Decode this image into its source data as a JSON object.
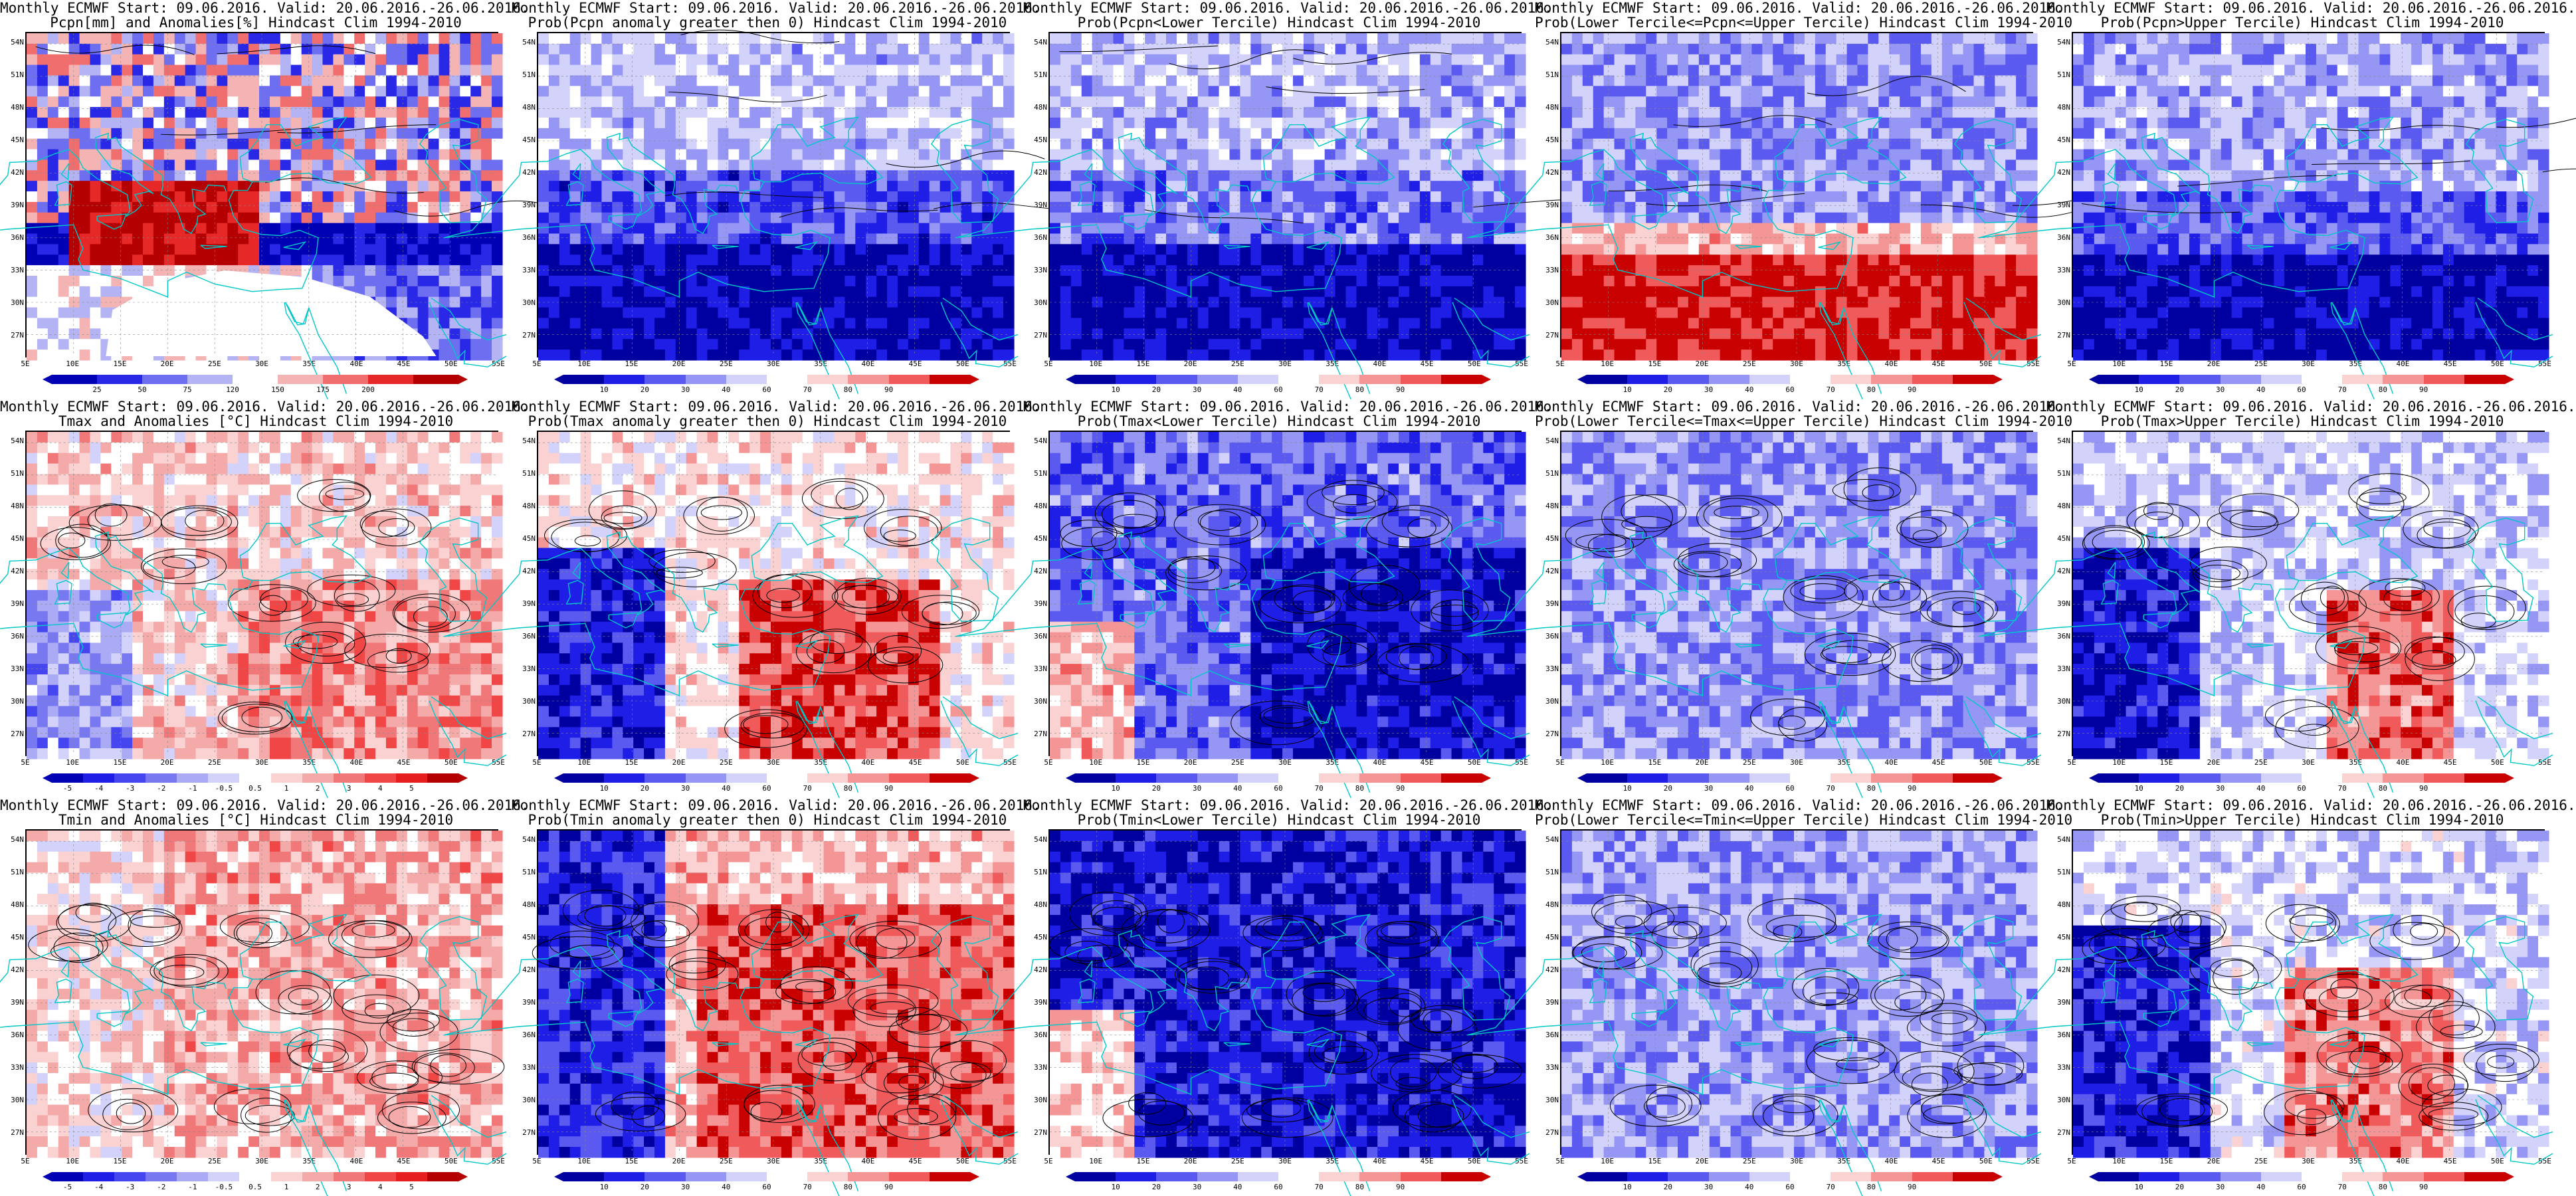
{
  "panels": [
    {
      "title1": "Monthly ECMWF Start: 09.06.2016. Valid: 20.06.2016.-26.06.2016.",
      "title2": "Pcpn[mm] and Anomalies[%] Hindcast Clim 1994-2010",
      "field": "Pcpn anomaly percent",
      "pattern": "pcpn_anom",
      "colorbar_labels": [
        "25",
        "50",
        "75",
        "120",
        "150",
        "175",
        "200"
      ],
      "colorbar_colors": [
        "#0000b4",
        "#2828e6",
        "#6e6ef0",
        "#b4b4f5",
        "#ffffff",
        "#f5b4b4",
        "#f06e6e",
        "#e62828",
        "#b40000"
      ]
    },
    {
      "title1": "Monthly ECMWF Start: 09.06.2016. Valid: 20.06.2016.-26.06.2016.",
      "title2": "Prob(Pcpn anomaly greater then 0) Hindcast Clim 1994-2010",
      "field": "probability",
      "pattern": "pcpn_pos",
      "colorbar_labels": [
        "10",
        "20",
        "30",
        "40",
        "60",
        "70",
        "80",
        "90"
      ],
      "colorbar_colors": [
        "#0000a0",
        "#1e1ee6",
        "#5a5af0",
        "#9696f5",
        "#d2d2fa",
        "#ffffff",
        "#fad2d2",
        "#f59696",
        "#f05a5a",
        "#c80000"
      ]
    },
    {
      "title1": "Monthly ECMWF Start: 09.06.2016. Valid: 20.06.2016.-26.06.2016.",
      "title2": "Prob(Pcpn<Lower Tercile) Hindcast Clim 1994-2010",
      "field": "probability",
      "pattern": "pcpn_low",
      "colorbar_labels": [
        "10",
        "20",
        "30",
        "40",
        "60",
        "70",
        "80",
        "90"
      ],
      "colorbar_colors": [
        "#0000a0",
        "#1e1ee6",
        "#5a5af0",
        "#9696f5",
        "#d2d2fa",
        "#ffffff",
        "#fad2d2",
        "#f59696",
        "#f05a5a",
        "#c80000"
      ]
    },
    {
      "title1": "Monthly ECMWF Start: 09.06.2016. Valid: 20.06.2016.-26.06.2016.",
      "title2": "Prob(Lower Tercile<=Pcpn<=Upper Tercile) Hindcast Clim 1994-2010",
      "field": "probability",
      "pattern": "pcpn_mid",
      "colorbar_labels": [
        "10",
        "20",
        "30",
        "40",
        "60",
        "70",
        "80",
        "90"
      ],
      "colorbar_colors": [
        "#0000a0",
        "#1e1ee6",
        "#5a5af0",
        "#9696f5",
        "#d2d2fa",
        "#ffffff",
        "#fad2d2",
        "#f59696",
        "#f05a5a",
        "#c80000"
      ]
    },
    {
      "title1": "Monthly ECMWF Start: 09.06.2016. Valid: 20.06.2016.-26.06.2016.",
      "title2": "Prob(Pcpn>Upper Tercile) Hindcast Clim 1994-2010",
      "field": "probability",
      "pattern": "pcpn_up",
      "colorbar_labels": [
        "10",
        "20",
        "30",
        "40",
        "60",
        "70",
        "80",
        "90"
      ],
      "colorbar_colors": [
        "#0000a0",
        "#1e1ee6",
        "#5a5af0",
        "#9696f5",
        "#d2d2fa",
        "#ffffff",
        "#fad2d2",
        "#f59696",
        "#f05a5a",
        "#c80000"
      ]
    },
    {
      "title1": "Monthly ECMWF Start: 09.06.2016. Valid: 20.06.2016.-26.06.2016.",
      "title2": "Tmax and Anomalies [°C] Hindcast Clim 1994-2010",
      "field": "temperature anomaly",
      "pattern": "tmax_anom",
      "colorbar_labels": [
        "-5",
        "-4",
        "-3",
        "-2",
        "-1",
        "-0.5",
        "0.5",
        "1",
        "2",
        "3",
        "4",
        "5"
      ],
      "colorbar_colors": [
        "#0000b4",
        "#1e1ee6",
        "#4646f0",
        "#7878f0",
        "#aaaaf5",
        "#d2d2fa",
        "#ffffff",
        "#fad2d2",
        "#f5aaaa",
        "#f07878",
        "#f04646",
        "#e61e1e",
        "#b40000"
      ]
    },
    {
      "title1": "Monthly ECMWF Start: 09.06.2016. Valid: 20.06.2016.-26.06.2016.",
      "title2": "Prob(Tmax anomaly greater then 0) Hindcast Clim 1994-2010",
      "field": "probability",
      "pattern": "tmax_pos",
      "colorbar_labels": [
        "10",
        "20",
        "30",
        "40",
        "60",
        "70",
        "80",
        "90"
      ],
      "colorbar_colors": [
        "#0000a0",
        "#1e1ee6",
        "#5a5af0",
        "#9696f5",
        "#d2d2fa",
        "#ffffff",
        "#fad2d2",
        "#f59696",
        "#f05a5a",
        "#c80000"
      ]
    },
    {
      "title1": "Monthly ECMWF Start: 09.06.2016. Valid: 20.06.2016.-26.06.2016.",
      "title2": "Prob(Tmax<Lower Tercile) Hindcast Clim 1994-2010",
      "field": "probability",
      "pattern": "tmax_low",
      "colorbar_labels": [
        "10",
        "20",
        "30",
        "40",
        "60",
        "70",
        "80",
        "90"
      ],
      "colorbar_colors": [
        "#0000a0",
        "#1e1ee6",
        "#5a5af0",
        "#9696f5",
        "#d2d2fa",
        "#ffffff",
        "#fad2d2",
        "#f59696",
        "#f05a5a",
        "#c80000"
      ]
    },
    {
      "title1": "Monthly ECMWF Start: 09.06.2016. Valid: 20.06.2016.-26.06.2016.",
      "title2": "Prob(Lower Tercile<=Tmax<=Upper Tercile) Hindcast Clim 1994-2010",
      "field": "probability",
      "pattern": "tmax_mid",
      "colorbar_labels": [
        "10",
        "20",
        "30",
        "40",
        "60",
        "70",
        "80",
        "90"
      ],
      "colorbar_colors": [
        "#0000a0",
        "#1e1ee6",
        "#5a5af0",
        "#9696f5",
        "#d2d2fa",
        "#ffffff",
        "#fad2d2",
        "#f59696",
        "#f05a5a",
        "#c80000"
      ]
    },
    {
      "title1": "Monthly ECMWF Start: 09.06.2016. Valid: 20.06.2016.-26.06.2016.",
      "title2": "Prob(Tmax>Upper Tercile) Hindcast Clim 1994-2010",
      "field": "probability",
      "pattern": "tmax_up",
      "colorbar_labels": [
        "10",
        "20",
        "30",
        "40",
        "60",
        "70",
        "80",
        "90"
      ],
      "colorbar_colors": [
        "#0000a0",
        "#1e1ee6",
        "#5a5af0",
        "#9696f5",
        "#d2d2fa",
        "#ffffff",
        "#fad2d2",
        "#f59696",
        "#f05a5a",
        "#c80000"
      ]
    },
    {
      "title1": "Monthly ECMWF Start: 09.06.2016. Valid: 20.06.2016.-26.06.2016.",
      "title2": "Tmin and Anomalies [°C] Hindcast Clim 1994-2010",
      "field": "temperature anomaly",
      "pattern": "tmin_anom",
      "colorbar_labels": [
        "-5",
        "-4",
        "-3",
        "-2",
        "-1",
        "-0.5",
        "0.5",
        "1",
        "2",
        "3",
        "4",
        "5"
      ],
      "colorbar_colors": [
        "#0000b4",
        "#1e1ee6",
        "#4646f0",
        "#7878f0",
        "#aaaaf5",
        "#d2d2fa",
        "#ffffff",
        "#fad2d2",
        "#f5aaaa",
        "#f07878",
        "#f04646",
        "#e61e1e",
        "#b40000"
      ]
    },
    {
      "title1": "Monthly ECMWF Start: 09.06.2016. Valid: 20.06.2016.-26.06.2016.",
      "title2": "Prob(Tmin anomaly greater then 0) Hindcast Clim 1994-2010",
      "field": "probability",
      "pattern": "tmin_pos",
      "colorbar_labels": [
        "10",
        "20",
        "30",
        "40",
        "60",
        "70",
        "80",
        "90"
      ],
      "colorbar_colors": [
        "#0000a0",
        "#1e1ee6",
        "#5a5af0",
        "#9696f5",
        "#d2d2fa",
        "#ffffff",
        "#fad2d2",
        "#f59696",
        "#f05a5a",
        "#c80000"
      ]
    },
    {
      "title1": "Monthly ECMWF Start: 09.06.2016. Valid: 20.06.2016.-26.06.2016.",
      "title2": "Prob(Tmin<Lower Tercile) Hindcast Clim 1994-2010",
      "field": "probability",
      "pattern": "tmin_low",
      "colorbar_labels": [
        "10",
        "20",
        "30",
        "40",
        "60",
        "70",
        "80",
        "90"
      ],
      "colorbar_colors": [
        "#0000a0",
        "#1e1ee6",
        "#5a5af0",
        "#9696f5",
        "#d2d2fa",
        "#ffffff",
        "#fad2d2",
        "#f59696",
        "#f05a5a",
        "#c80000"
      ]
    },
    {
      "title1": "Monthly ECMWF Start: 09.06.2016. Valid: 20.06.2016.-26.06.2016.",
      "title2": "Prob(Lower Tercile<=Tmin<=Upper Tercile) Hindcast Clim 1994-2010",
      "field": "probability",
      "pattern": "tmin_mid",
      "colorbar_labels": [
        "10",
        "20",
        "30",
        "40",
        "60",
        "70",
        "80",
        "90"
      ],
      "colorbar_colors": [
        "#0000a0",
        "#1e1ee6",
        "#5a5af0",
        "#9696f5",
        "#d2d2fa",
        "#ffffff",
        "#fad2d2",
        "#f59696",
        "#f05a5a",
        "#c80000"
      ]
    },
    {
      "title1": "Monthly ECMWF Start: 09.06.2016. Valid: 20.06.2016.-26.06.2016.",
      "title2": "Prob(Tmin>Upper Tercile) Hindcast Clim 1994-2010",
      "field": "probability",
      "pattern": "tmin_up",
      "colorbar_labels": [
        "10",
        "20",
        "30",
        "40",
        "60",
        "70",
        "80",
        "90"
      ],
      "colorbar_colors": [
        "#0000a0",
        "#1e1ee6",
        "#5a5af0",
        "#9696f5",
        "#d2d2fa",
        "#ffffff",
        "#fad2d2",
        "#f59696",
        "#f05a5a",
        "#c80000"
      ]
    }
  ],
  "lat_labels": [
    "54N",
    "51N",
    "48N",
    "45N",
    "42N",
    "39N",
    "36N",
    "33N",
    "30N",
    "27N"
  ],
  "lon_labels": [
    "5E",
    "10E",
    "15E",
    "20E",
    "25E",
    "30E",
    "35E",
    "40E",
    "45E",
    "50E",
    "55E"
  ],
  "colors": {
    "coastline": "#00c8c8",
    "contour": "#000000",
    "grid": "#888888"
  }
}
